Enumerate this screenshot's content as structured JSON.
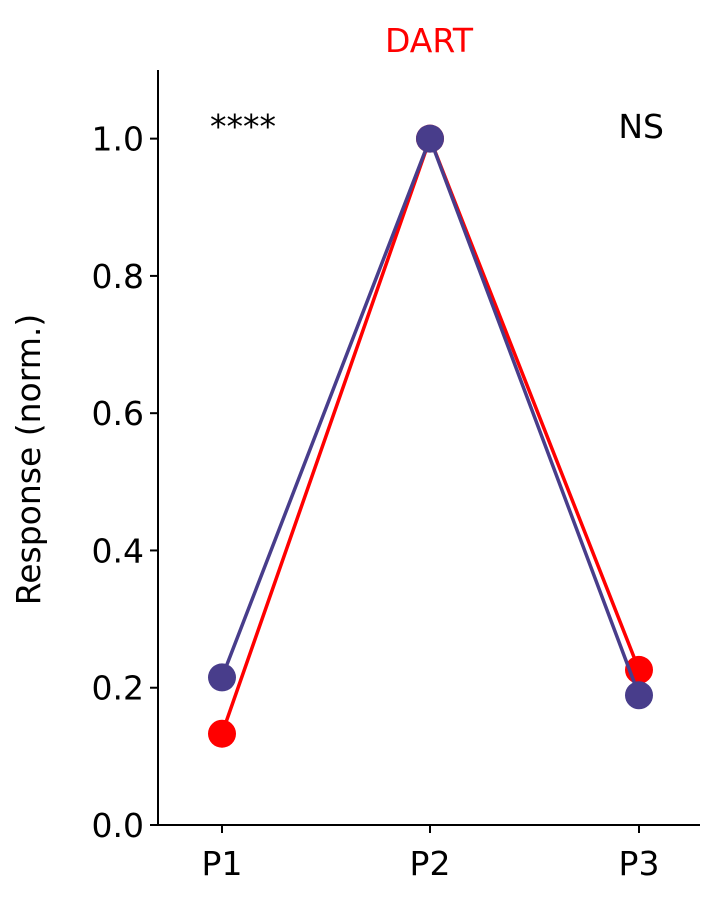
{
  "chart_data": {
    "type": "line",
    "title": "DART",
    "title_color": "#ff0000",
    "xlabel": "",
    "ylabel": "Response (norm.)",
    "categories": [
      "P1",
      "P2",
      "P3"
    ],
    "ylim": [
      0,
      1.1
    ],
    "yticks": [
      "0.0",
      "0.2",
      "0.4",
      "0.6",
      "0.8",
      "1.0"
    ],
    "grid": false,
    "series": [
      {
        "color": "#ff0000",
        "values": [
          0.133,
          1.0,
          0.226
        ]
      },
      {
        "color": "#483d8b",
        "values": [
          0.215,
          1.0,
          0.189
        ]
      }
    ],
    "annotations": [
      {
        "category": "P1",
        "text": "****"
      },
      {
        "category": "P3",
        "text": "NS"
      }
    ]
  }
}
